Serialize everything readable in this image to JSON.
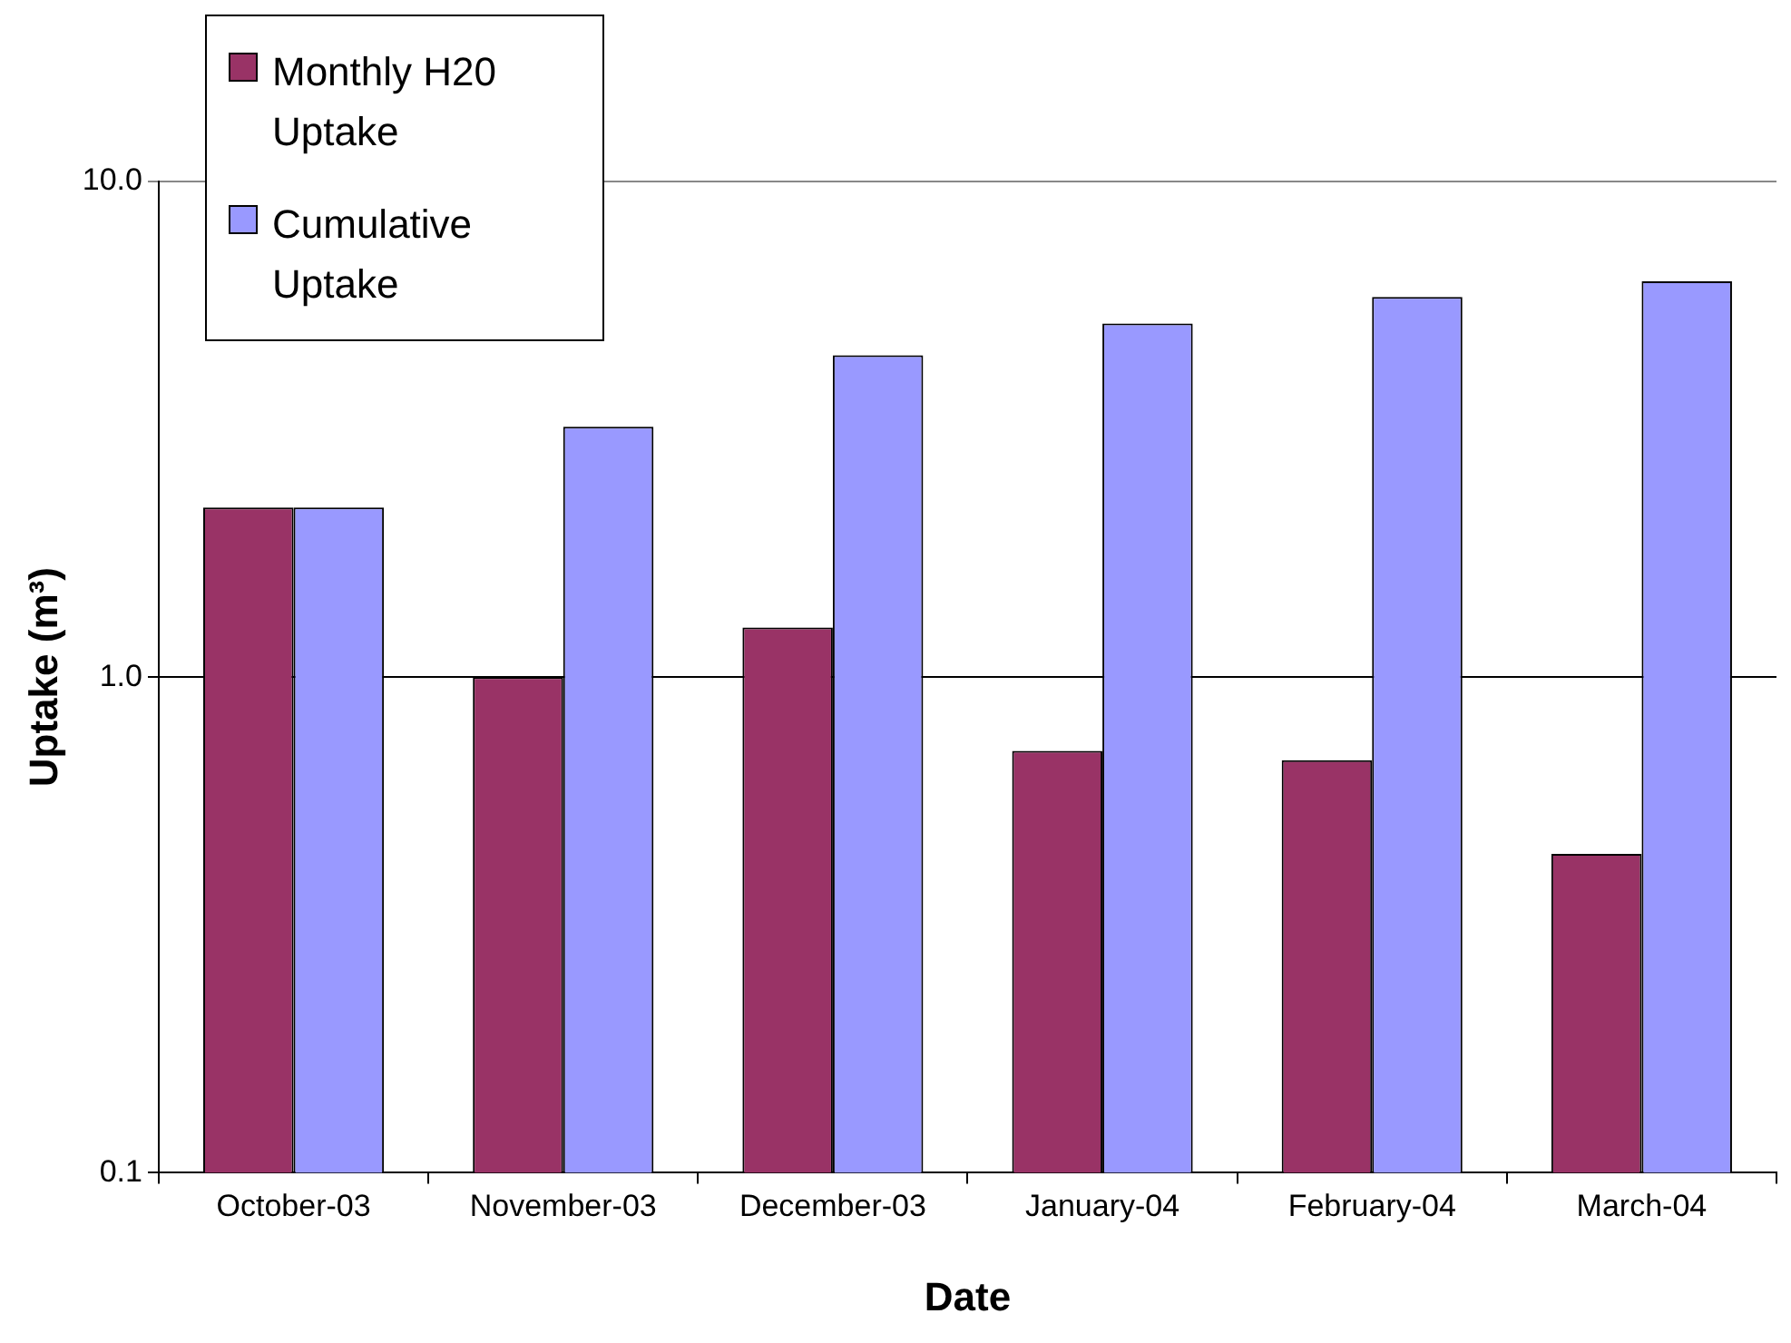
{
  "chart_data": {
    "type": "bar",
    "xlabel": "Date",
    "ylabel": "Uptake (m³)",
    "categories": [
      "October-03",
      "November-03",
      "December-03",
      "January-04",
      "February-04",
      "March-04"
    ],
    "series": [
      {
        "name": "Monthly H20 Uptake",
        "color": "#993366",
        "values": [
          2.2,
          1.0,
          1.26,
          0.71,
          0.68,
          0.44
        ]
      },
      {
        "name": "Cumulative Uptake",
        "color": "#9999ff",
        "values": [
          2.2,
          3.2,
          4.46,
          5.17,
          5.85,
          6.29
        ]
      }
    ],
    "log": "y",
    "ylim": [
      0.1,
      10
    ],
    "yticks": [
      {
        "value": 0.1,
        "label": "0.1"
      },
      {
        "value": 1,
        "label": "1.0"
      },
      {
        "value": 10,
        "label": "10.0"
      }
    ],
    "grid": "y",
    "legend": "top left"
  }
}
